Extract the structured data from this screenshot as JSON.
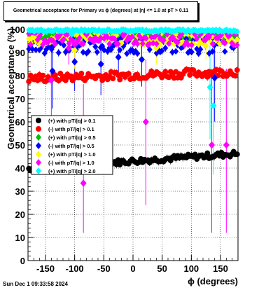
{
  "chart_data": {
    "type": "scatter",
    "title": "Geometrical acceptance for Primary vs ϕ (degrees) at |η| <= 1.0 at pT > 0.11",
    "xlabel": "ϕ (degrees)",
    "ylabel": "Geometrical acceptance (%)",
    "xlim": [
      -180,
      180
    ],
    "ylim": [
      0,
      100
    ],
    "xticks": [
      -150,
      -100,
      -50,
      0,
      50,
      100,
      150
    ],
    "yticks": [
      0,
      10,
      20,
      30,
      40,
      50,
      60,
      70,
      80,
      90,
      100
    ],
    "grid": true,
    "legend_position": "middle-left",
    "series": [
      {
        "name": "(+) with pT/|q| > 0.1",
        "color": "#000000",
        "marker": "circle",
        "baseline": 43,
        "slope": 0.018,
        "spread": 1.2,
        "outliers": []
      },
      {
        "name": "(-) with pT/|q| > 0.1",
        "color": "#ff0000",
        "marker": "circle",
        "baseline": 82,
        "slope": 0.008,
        "spread": 1.8,
        "outliers": []
      },
      {
        "name": "(+) with pT/|q| > 0.5",
        "color": "#00c000",
        "marker": "diamond",
        "baseline": 97,
        "slope": 0,
        "spread": 1.2,
        "outliers": []
      },
      {
        "name": "(-) with pT/|q| > 0.5",
        "color": "#0000ff",
        "marker": "diamond",
        "baseline": 93,
        "slope": 0,
        "spread": 3.5,
        "outliers": [
          [
            -138,
            82
          ],
          [
            -100,
            86
          ],
          [
            -55,
            85
          ],
          [
            -25,
            88
          ],
          [
            15,
            87
          ],
          [
            140,
            79
          ]
        ]
      },
      {
        "name": "(+) with pT/|q| > 1.0",
        "color": "#ffff00",
        "marker": "diamond",
        "baseline": 96,
        "slope": 0,
        "spread": 2.5,
        "outliers": [
          [
            -100,
            91
          ],
          [
            40,
            92
          ],
          [
            125,
            93
          ]
        ]
      },
      {
        "name": "(-) with pT/|q| > 1.0",
        "color": "#ff00ff",
        "marker": "diamond",
        "baseline": 96,
        "slope": 0,
        "spread": 3.0,
        "outliers": [
          [
            -85,
            33.5
          ],
          [
            22,
            60
          ],
          [
            -140,
            78
          ],
          [
            135,
            50
          ],
          [
            160,
            50
          ],
          [
            -110,
            92
          ]
        ]
      },
      {
        "name": "(+) with pT/|q| > 2.0",
        "color": "#00ffff",
        "marker": "diamond",
        "baseline": 99.5,
        "slope": 0,
        "spread": 0.5,
        "outliers": [
          [
            138,
            67
          ],
          [
            132,
            75
          ],
          [
            -105,
            98
          ]
        ]
      }
    ]
  },
  "footer": {
    "timestamp": "Sun Dec  1 09:33:58 2024"
  }
}
